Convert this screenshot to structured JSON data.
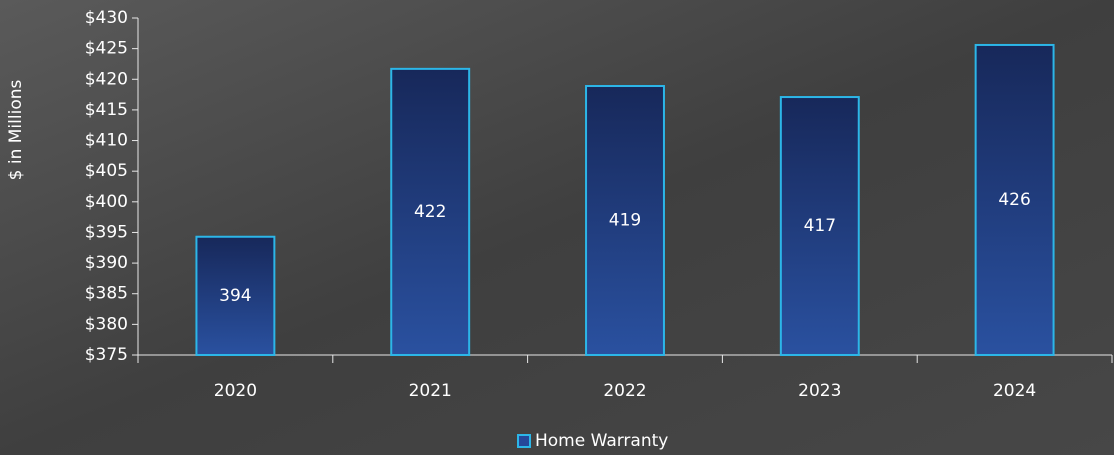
{
  "chart_data": {
    "type": "bar",
    "y_label": "$ in Millions",
    "categories": [
      "2020",
      "2021",
      "2022",
      "2023",
      "2024"
    ],
    "series": [
      {
        "name": "Home Warranty",
        "color": "#25479a",
        "edge_color": "#2cb6e8",
        "values": [
          394.3,
          421.7,
          418.9,
          417.1,
          425.6
        ],
        "value_labels": [
          "394",
          "422",
          "419",
          "417",
          "426"
        ]
      }
    ],
    "ylim": [
      375,
      430
    ],
    "yticks": [
      {
        "value": 375,
        "label": "$375"
      },
      {
        "value": 380,
        "label": "$380"
      },
      {
        "value": 385,
        "label": "$385"
      },
      {
        "value": 390,
        "label": "$390"
      },
      {
        "value": 395,
        "label": "$395"
      },
      {
        "value": 400,
        "label": "$400"
      },
      {
        "value": 405,
        "label": "$405"
      },
      {
        "value": 410,
        "label": "$410"
      },
      {
        "value": 415,
        "label": "$415"
      },
      {
        "value": 420,
        "label": "$420"
      },
      {
        "value": 425,
        "label": "$425"
      },
      {
        "value": 430,
        "label": "$430"
      }
    ],
    "grid": false,
    "legend": "bottom"
  }
}
